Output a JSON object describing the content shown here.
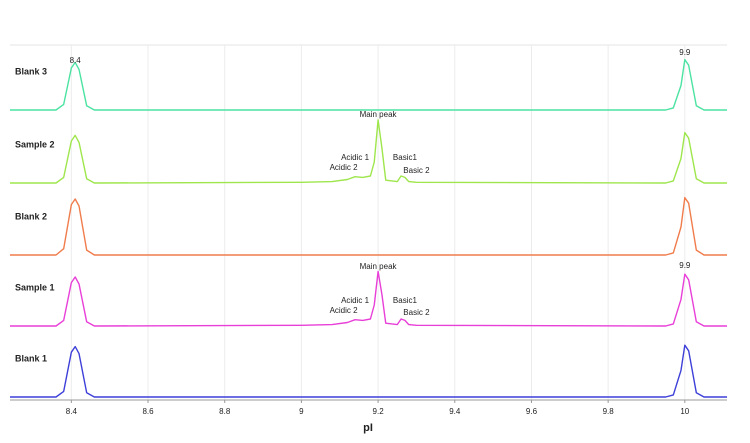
{
  "chart_data": {
    "type": "line",
    "x_label": "pI",
    "xlim": [
      8.24,
      10.11
    ],
    "xticks": [
      8.4,
      8.6,
      8.8,
      9,
      9.2,
      9.4,
      9.6,
      9.8,
      10
    ],
    "ylim": [
      0,
      100
    ],
    "grid": true,
    "x": [
      8.24,
      8.36,
      8.38,
      8.4,
      8.41,
      8.42,
      8.44,
      8.46,
      9.0,
      9.08,
      9.12,
      9.14,
      9.16,
      9.18,
      9.19,
      9.2,
      9.21,
      9.22,
      9.25,
      9.26,
      9.27,
      9.28,
      9.3,
      9.95,
      9.97,
      9.99,
      10.0,
      10.01,
      10.03,
      10.05,
      10.11
    ],
    "series": [
      {
        "name": "Blank 3",
        "color": "#4be3a2",
        "values": [
          0,
          0,
          8,
          60,
          68,
          58,
          6,
          0,
          0,
          0,
          0,
          0,
          0,
          0,
          0,
          0,
          0,
          0,
          0,
          0,
          0,
          0,
          0,
          0,
          3,
          35,
          72,
          64,
          6,
          0,
          0
        ],
        "annotations": [
          {
            "text": "8.4",
            "x": 8.41
          },
          {
            "text": "9.9",
            "x": 10.0
          }
        ]
      },
      {
        "name": "Sample 2",
        "color": "#9ee64c",
        "values": [
          0,
          0,
          8,
          60,
          68,
          58,
          6,
          0,
          1,
          2,
          5,
          9,
          8,
          10,
          30,
          90,
          50,
          4,
          2,
          10,
          8,
          2,
          1,
          0,
          3,
          35,
          72,
          64,
          6,
          0,
          0
        ],
        "annotations": [
          {
            "text": "Main peak",
            "x": 9.2
          },
          {
            "text": "Acidic 1",
            "x": 9.14
          },
          {
            "text": "Acidic 2",
            "x": 9.11
          },
          {
            "text": "Basic1",
            "x": 9.27
          },
          {
            "text": "Basic 2",
            "x": 9.3
          }
        ]
      },
      {
        "name": "Blank 2",
        "color": "#f07c4c",
        "values": [
          0,
          0,
          9,
          72,
          80,
          70,
          7,
          0,
          0,
          0,
          0,
          0,
          0,
          0,
          0,
          0,
          0,
          0,
          0,
          0,
          0,
          0,
          0,
          0,
          3,
          40,
          82,
          74,
          7,
          0,
          0
        ],
        "annotations": []
      },
      {
        "name": "Sample 1",
        "color": "#e83fd8",
        "values": [
          0,
          0,
          8,
          62,
          70,
          60,
          6,
          0,
          1,
          2,
          5,
          9,
          8,
          10,
          30,
          78,
          45,
          4,
          2,
          10,
          8,
          2,
          1,
          0,
          3,
          38,
          74,
          66,
          6,
          0,
          0
        ],
        "annotations": [
          {
            "text": "9.9",
            "x": 10.0
          },
          {
            "text": "Main peak",
            "x": 9.2
          },
          {
            "text": "Acidic 1",
            "x": 9.14
          },
          {
            "text": "Acidic 2",
            "x": 9.11
          },
          {
            "text": "Basic1",
            "x": 9.27
          },
          {
            "text": "Basic 2",
            "x": 9.3
          }
        ]
      },
      {
        "name": "Blank 1",
        "color": "#3d3fd8",
        "values": [
          0,
          0,
          8,
          64,
          72,
          62,
          6,
          0,
          0,
          0,
          0,
          0,
          0,
          0,
          0,
          0,
          0,
          0,
          0,
          0,
          0,
          0,
          0,
          0,
          3,
          38,
          74,
          66,
          6,
          0,
          0
        ],
        "annotations": []
      }
    ]
  }
}
